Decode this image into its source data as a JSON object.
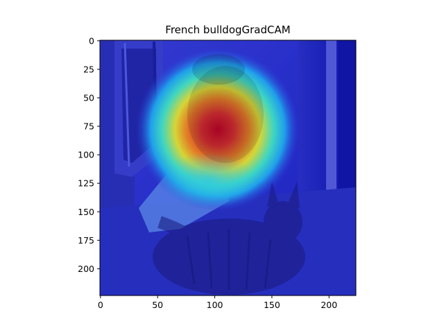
{
  "figure": {
    "title": "French bulldogGradCAM"
  },
  "image": {
    "description_tags": [
      "french-bulldog",
      "tabby-cat",
      "gradcam-heatmap-overlay",
      "jet-colormap"
    ],
    "extent": {
      "x": [
        0,
        224
      ],
      "y": [
        224,
        0
      ]
    }
  },
  "axes": {
    "x_ticks": [
      {
        "value": 0,
        "label": "0"
      },
      {
        "value": 50,
        "label": "50"
      },
      {
        "value": 100,
        "label": "100"
      },
      {
        "value": 150,
        "label": "150"
      },
      {
        "value": 200,
        "label": "200"
      }
    ],
    "y_ticks": [
      {
        "value": 0,
        "label": "0"
      },
      {
        "value": 25,
        "label": "25"
      },
      {
        "value": 50,
        "label": "50"
      },
      {
        "value": 75,
        "label": "75"
      },
      {
        "value": 100,
        "label": "100"
      },
      {
        "value": 125,
        "label": "125"
      },
      {
        "value": 150,
        "label": "150"
      },
      {
        "value": 175,
        "label": "175"
      },
      {
        "value": 200,
        "label": "200"
      }
    ]
  }
}
